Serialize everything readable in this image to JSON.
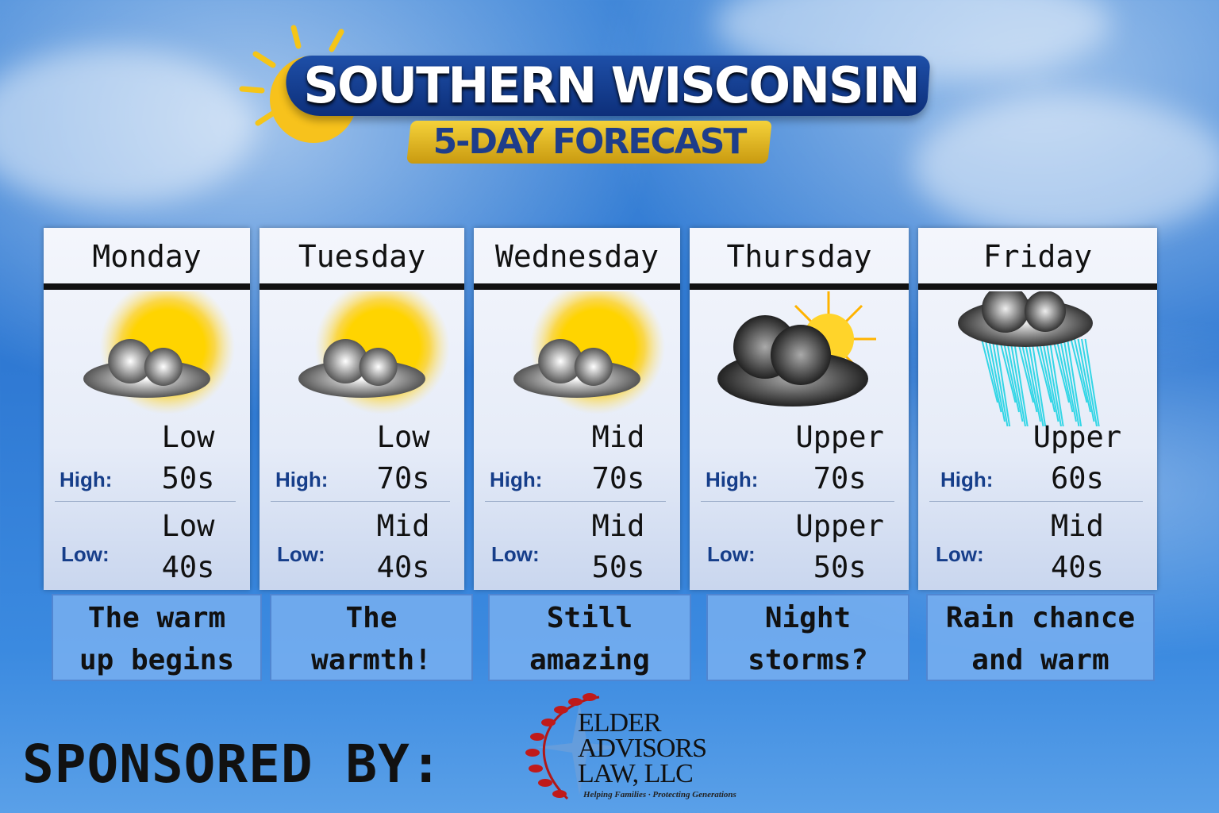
{
  "title": {
    "line1": "SOUTHERN WISCONSIN",
    "line2": "5-DAY FORECAST"
  },
  "labels": {
    "high": "High:",
    "low": "Low:"
  },
  "days": [
    {
      "name": "Monday",
      "icon": "partly-sunny-icon",
      "high_q": "Low",
      "high": "50s",
      "low_q": "Low",
      "low": "40s",
      "caption": [
        "The warm",
        "up begins"
      ]
    },
    {
      "name": "Tuesday",
      "icon": "partly-sunny-icon",
      "high_q": "Low",
      "high": "70s",
      "low_q": "Mid",
      "low": "40s",
      "caption": [
        "The",
        "warmth!"
      ]
    },
    {
      "name": "Wednesday",
      "icon": "partly-sunny-icon",
      "high_q": "Mid",
      "high": "70s",
      "low_q": "Mid",
      "low": "50s",
      "caption": [
        "Still",
        "amazing"
      ]
    },
    {
      "name": "Thursday",
      "icon": "storm-cloud-sun-icon",
      "high_q": "Upper",
      "high": "70s",
      "low_q": "Upper",
      "low": "50s",
      "caption": [
        "Night",
        "storms?"
      ]
    },
    {
      "name": "Friday",
      "icon": "rain-cloud-icon",
      "high_q": "Upper",
      "high": "60s",
      "low_q": "Mid",
      "low": "40s",
      "caption": [
        "Rain chance",
        "and warm"
      ]
    }
  ],
  "sponsor": {
    "label": "SPONSORED BY:",
    "logo_lines": [
      "ELDER",
      "ADVISORS",
      "LAW, LLC"
    ],
    "tagline": "Helping Families · Protecting Generations"
  },
  "colors": {
    "banner": "#1e4fa8",
    "ribbon": "#f5d23a",
    "label": "#163e8a",
    "caption_bg": "#78aff0"
  }
}
